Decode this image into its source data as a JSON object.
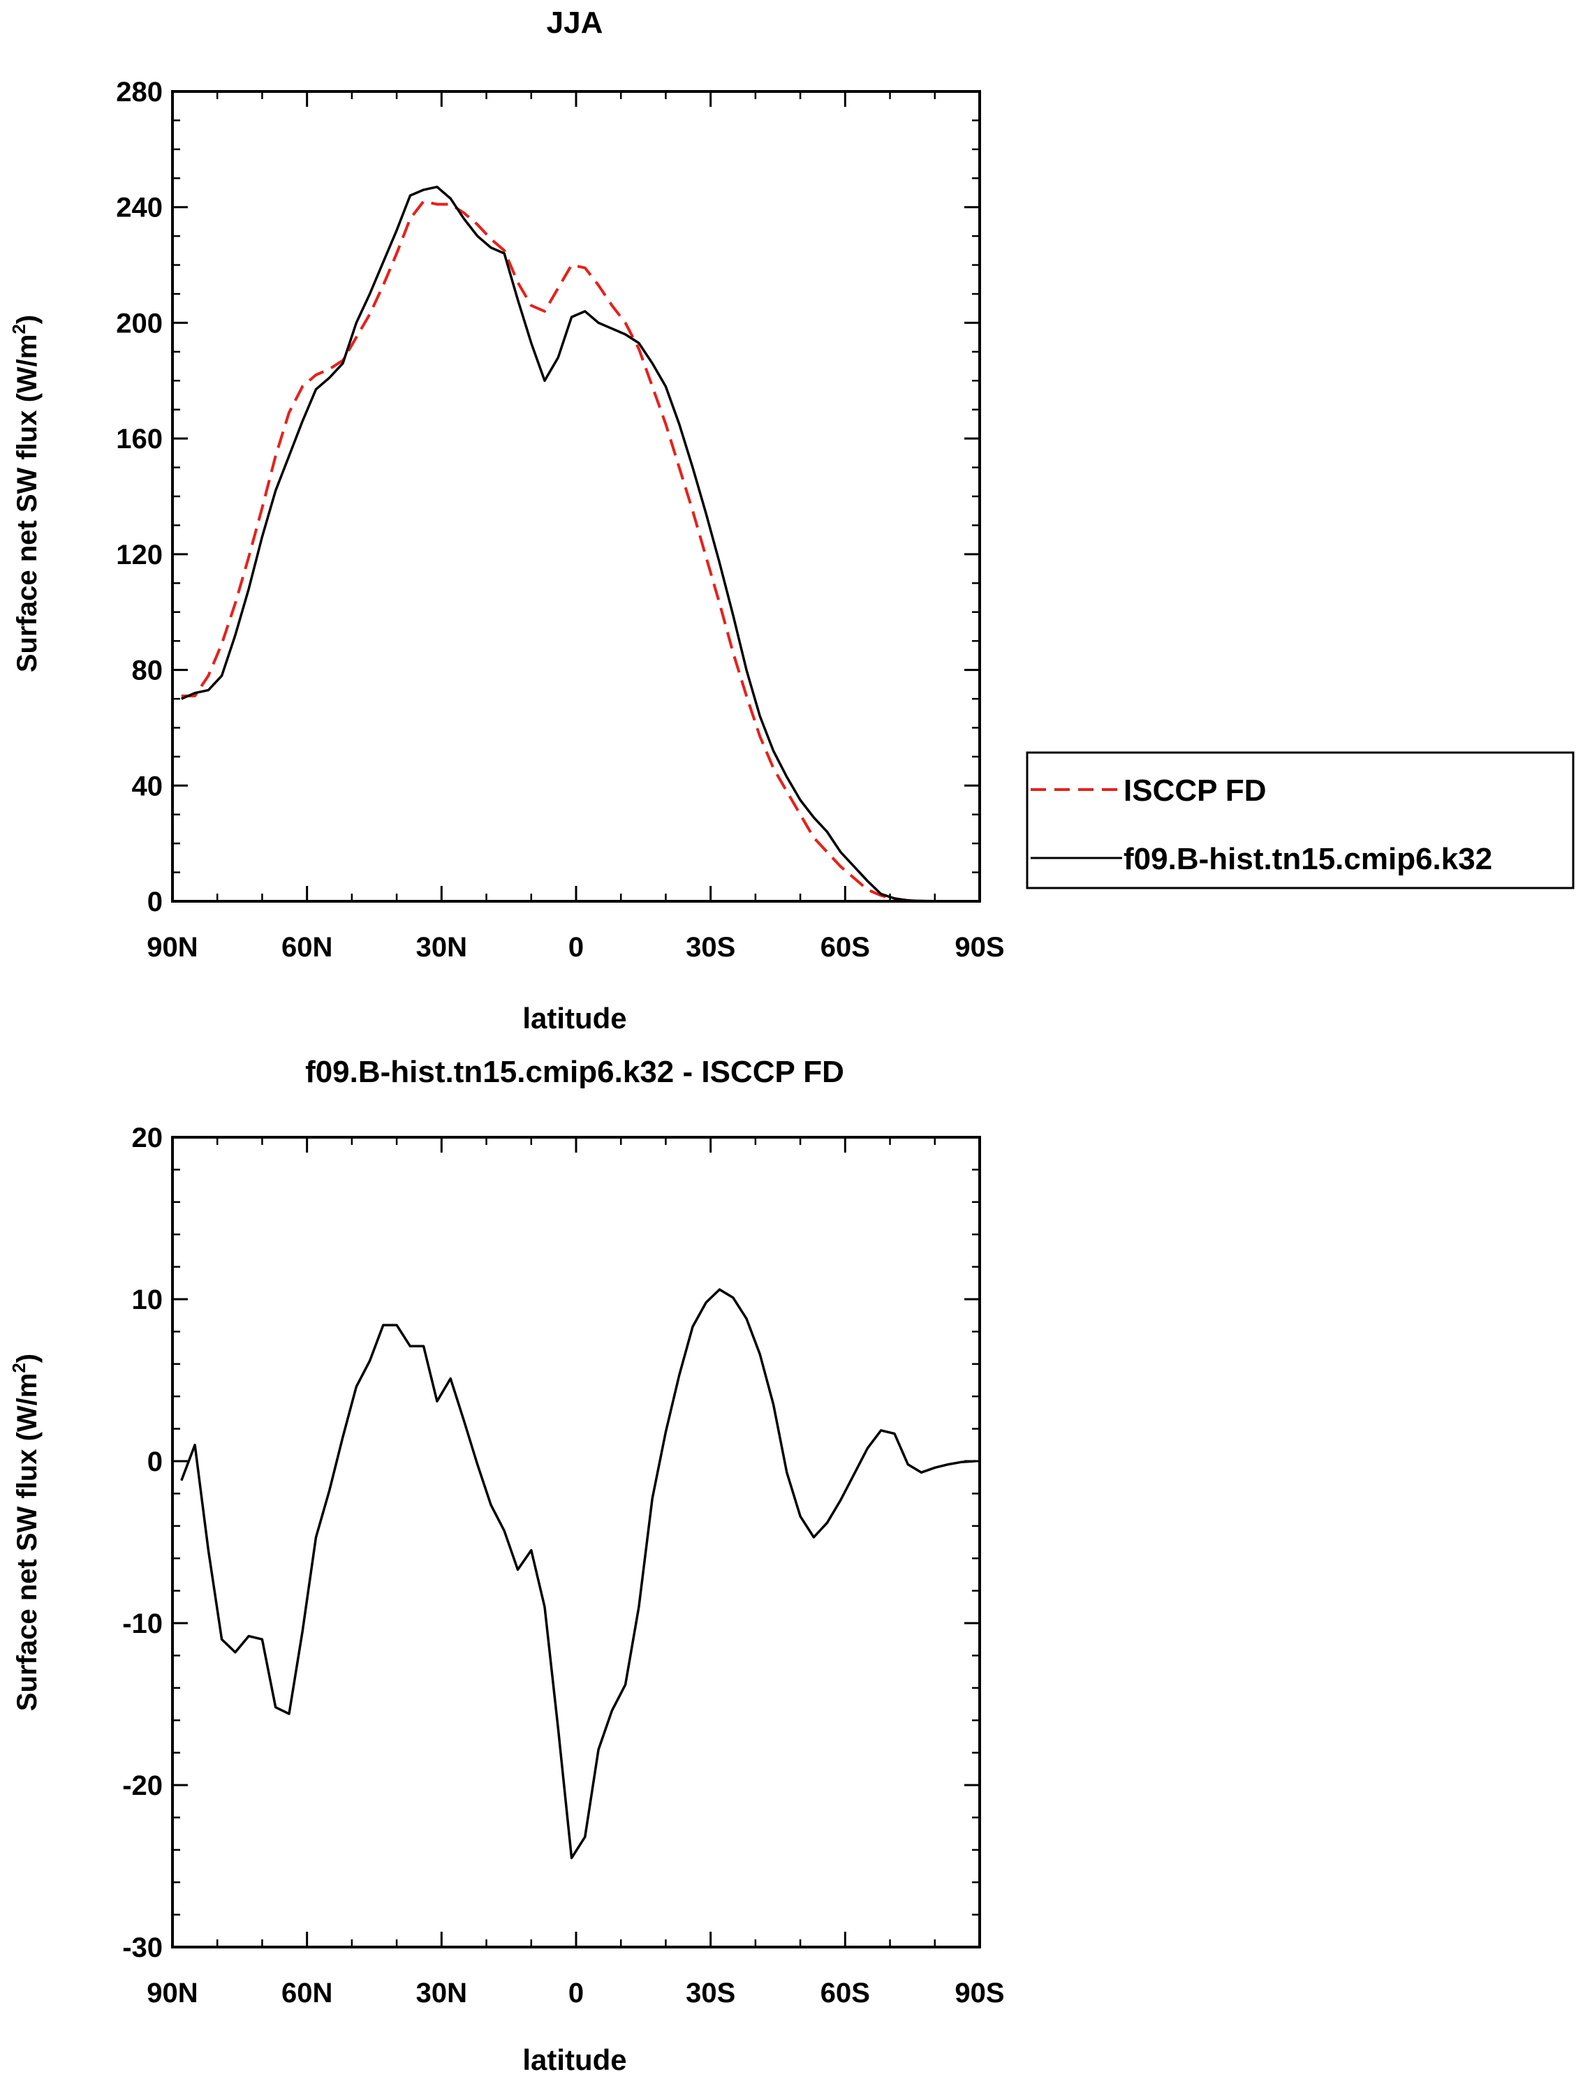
{
  "chart_data": [
    {
      "type": "line",
      "title": "JJA",
      "xlabel": "latitude",
      "ylabel": "Surface net SW flux (W/m²)",
      "ylabel_main": "Surface net SW flux (W/m",
      "ylabel_sup": "2",
      "ylabel_tail": ")",
      "xlim": [
        90,
        -90
      ],
      "ylim": [
        0,
        280
      ],
      "xticks": [
        90,
        60,
        30,
        0,
        -30,
        -60,
        -90
      ],
      "xtick_labels": [
        "90N",
        "60N",
        "30N",
        "0",
        "30S",
        "60S",
        "90S"
      ],
      "yticks": [
        0,
        40,
        80,
        120,
        160,
        200,
        240,
        280
      ],
      "ytick_labels": [
        "0",
        "40",
        "80",
        "120",
        "160",
        "200",
        "240",
        "280"
      ],
      "legend_position": "right",
      "series": [
        {
          "name": "ISCCP FD",
          "color": "#e8201a",
          "dash": "dashed",
          "x": [
            88,
            85,
            82,
            79,
            76,
            73,
            70,
            67,
            64,
            61,
            58,
            55,
            52,
            49,
            46,
            43,
            40,
            37,
            34,
            31,
            28,
            25,
            22,
            19,
            16,
            13,
            10,
            7,
            4,
            1,
            -2,
            -5,
            -8,
            -11,
            -14,
            -17,
            -20,
            -23,
            -26,
            -29,
            -32,
            -35,
            -38,
            -41,
            -44,
            -47,
            -50,
            -53,
            -56,
            -59,
            -62,
            -65,
            -68,
            -71,
            -74,
            -77,
            -80,
            -83,
            -86,
            -89
          ],
          "y": [
            71,
            71,
            78,
            89,
            103,
            119,
            136,
            154,
            169,
            178,
            182,
            184,
            187,
            195,
            203,
            213,
            224,
            236,
            242,
            241,
            241,
            238,
            234,
            229,
            225,
            214,
            206,
            204,
            212,
            220,
            219,
            213,
            206,
            200,
            191,
            178,
            165,
            150,
            135,
            119,
            103,
            86,
            71,
            57,
            46,
            38,
            30,
            22,
            17,
            12,
            8,
            4,
            2,
            0.8,
            0.3,
            0.1,
            0,
            0,
            0,
            0
          ]
        },
        {
          "name": "f09.B-hist.tn15.cmip6.k32",
          "color": "#000000",
          "dash": "solid",
          "x": [
            88,
            85,
            82,
            79,
            76,
            73,
            70,
            67,
            64,
            61,
            58,
            55,
            52,
            49,
            46,
            43,
            40,
            37,
            34,
            31,
            28,
            25,
            22,
            19,
            16,
            13,
            10,
            7,
            4,
            1,
            -2,
            -5,
            -8,
            -11,
            -14,
            -17,
            -20,
            -23,
            -26,
            -29,
            -32,
            -35,
            -38,
            -41,
            -44,
            -47,
            -50,
            -53,
            -56,
            -59,
            -62,
            -65,
            -68,
            -71,
            -74,
            -77,
            -80,
            -83,
            -86,
            -89
          ],
          "y": [
            70,
            72,
            73,
            78,
            92,
            108,
            126,
            142,
            154,
            166,
            177,
            181,
            186,
            200,
            210,
            221,
            232,
            244,
            246,
            247,
            243,
            236,
            230,
            226,
            224,
            208,
            193,
            180,
            188,
            202,
            204,
            200,
            198,
            196,
            193,
            186,
            178,
            165,
            150,
            134,
            117,
            99,
            80,
            64,
            52,
            43,
            35,
            29,
            24,
            17,
            12,
            7,
            2.5,
            1,
            0.3,
            0.1,
            0,
            0,
            0,
            0
          ]
        }
      ]
    },
    {
      "type": "line",
      "title": "f09.B-hist.tn15.cmip6.k32 - ISCCP FD",
      "xlabel": "latitude",
      "ylabel": "Surface net SW flux (W/m²)",
      "ylabel_main": "Surface net SW flux (W/m",
      "ylabel_sup": "2",
      "ylabel_tail": ")",
      "xlim": [
        90,
        -90
      ],
      "ylim": [
        -30,
        20
      ],
      "xticks": [
        90,
        60,
        30,
        0,
        -30,
        -60,
        -90
      ],
      "xtick_labels": [
        "90N",
        "60N",
        "30N",
        "0",
        "30S",
        "60S",
        "90S"
      ],
      "yticks": [
        -30,
        -20,
        -10,
        0,
        10,
        20
      ],
      "ytick_labels": [
        "-30",
        "-20",
        "-10",
        "0",
        "10",
        "20"
      ],
      "series": [
        {
          "color": "#000000",
          "dash": "solid",
          "x": [
            88,
            85,
            82,
            79,
            76,
            73,
            70,
            67,
            64,
            61,
            58,
            55,
            52,
            49,
            46,
            43,
            40,
            37,
            34,
            31,
            28,
            25,
            22,
            19,
            16,
            13,
            10,
            7,
            4,
            1,
            -2,
            -5,
            -8,
            -11,
            -14,
            -17,
            -20,
            -23,
            -26,
            -29,
            -32,
            -35,
            -38,
            -41,
            -44,
            -47,
            -50,
            -53,
            -56,
            -59,
            -62,
            -65,
            -68,
            -71,
            -74,
            -77,
            -80,
            -83,
            -86,
            -89
          ],
          "y": [
            -1.2,
            1,
            -5.5,
            -11,
            -11.8,
            -10.8,
            -11,
            -15.2,
            -15.6,
            -10.5,
            -4.7,
            -1.8,
            1.5,
            4.6,
            6.2,
            8.4,
            8.4,
            7.1,
            7.1,
            3.7,
            5.1,
            2.5,
            -0.2,
            -2.7,
            -4.3,
            -6.7,
            -5.5,
            -9,
            -16.5,
            -24.5,
            -23.2,
            -17.8,
            -15.4,
            -13.8,
            -9,
            -2.3,
            1.8,
            5.3,
            8.3,
            9.8,
            10.6,
            10.1,
            8.8,
            6.6,
            3.5,
            -0.7,
            -3.4,
            -4.7,
            -3.8,
            -2.4,
            -0.8,
            0.8,
            1.9,
            1.7,
            -0.2,
            -0.7,
            -0.4,
            -0.2,
            -0.05,
            0
          ]
        }
      ]
    }
  ]
}
